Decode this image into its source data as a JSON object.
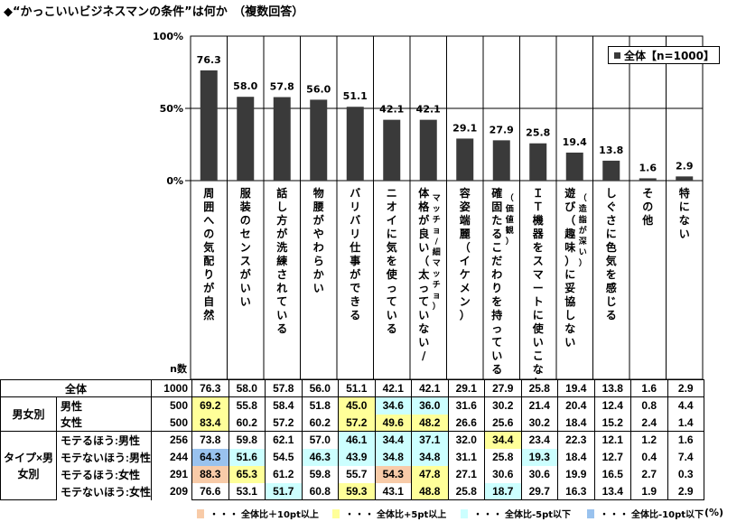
{
  "title": "◆“かっこいいビジネスマンの条件”は何か　（複数回答）",
  "legend": "全体【n=1000】",
  "unit": "(%)",
  "colors": {
    "bar": "#3a3a3a",
    "plus10": "#f8cba8",
    "plus5": "#ffff99",
    "minus5": "#ccffff",
    "minus10": "#99c2ee"
  },
  "chart_data": {
    "type": "bar",
    "title": "“かっこいいビジネスマンの条件”は何か　（複数回答）",
    "ylim": [
      0,
      100
    ],
    "yticks": [
      "0%",
      "50%",
      "100%"
    ],
    "legend": "全体【n=1000】",
    "legend_position": "top-right",
    "categories": [
      {
        "main": "周囲への気配りが自然",
        "sub": ""
      },
      {
        "main": "服装のセンスがいい",
        "sub": ""
      },
      {
        "main": "話し方が洗練されている",
        "sub": ""
      },
      {
        "main": "物腰がやわらかい",
        "sub": ""
      },
      {
        "main": "バリバリ仕事ができる",
        "sub": ""
      },
      {
        "main": "ニオイに気を使っている",
        "sub": ""
      },
      {
        "main": "体格が良い（太っていない/",
        "sub": "マッチョ/細マッチョ）"
      },
      {
        "main": "容姿端麗（イケメン）",
        "sub": ""
      },
      {
        "main": "確固たるこだわりを持っている",
        "sub": "（価値観）"
      },
      {
        "main": "ＩＴ機器をスマートに使いこなしている",
        "sub": ""
      },
      {
        "main": "遊び（趣味）に妥協しない",
        "sub": "（造詣が深い）"
      },
      {
        "main": "しぐさに色気を感じる",
        "sub": ""
      },
      {
        "main": "その他",
        "sub": ""
      },
      {
        "main": "特にない",
        "sub": ""
      }
    ],
    "values": [
      76.3,
      58.0,
      57.8,
      56.0,
      51.1,
      42.1,
      42.1,
      29.1,
      27.9,
      25.8,
      19.4,
      13.8,
      1.6,
      2.9
    ],
    "value_labels": [
      "76.3",
      "58.0",
      "57.8",
      "56.0",
      "51.1",
      "42.1",
      "42.1",
      "29.1",
      "27.9",
      "25.8",
      "19.4",
      "13.8",
      "1.6",
      "2.9"
    ],
    "n_header": "n数",
    "table": [
      {
        "group": "",
        "label": "全体",
        "n": "1000",
        "values": [
          "76.3",
          "58.0",
          "57.8",
          "56.0",
          "51.1",
          "42.1",
          "42.1",
          "29.1",
          "27.9",
          "25.8",
          "19.4",
          "13.8",
          "1.6",
          "2.9"
        ],
        "highlights": [
          "",
          "",
          "",
          "",
          "",
          "",
          "",
          "",
          "",
          "",
          "",
          "",
          "",
          ""
        ]
      },
      {
        "group": "男女別",
        "label": "男性",
        "n": "500",
        "values": [
          "69.2",
          "55.8",
          "58.4",
          "51.8",
          "45.0",
          "34.6",
          "36.0",
          "31.6",
          "30.2",
          "21.4",
          "20.4",
          "12.4",
          "0.8",
          "4.4"
        ],
        "highlights": [
          "plus5",
          "",
          "",
          "",
          "plus5",
          "minus5",
          "minus5",
          "",
          "",
          "",
          "",
          "",
          "",
          ""
        ]
      },
      {
        "group": "",
        "label": "女性",
        "n": "500",
        "values": [
          "83.4",
          "60.2",
          "57.2",
          "60.2",
          "57.2",
          "49.6",
          "48.2",
          "26.6",
          "25.6",
          "30.2",
          "18.4",
          "15.2",
          "2.4",
          "1.4"
        ],
        "highlights": [
          "plus5",
          "",
          "",
          "",
          "plus5",
          "plus5",
          "plus5",
          "",
          "",
          "",
          "",
          "",
          "",
          ""
        ]
      },
      {
        "group": "タイプ×男女別",
        "label": "モテるほう:男性",
        "n": "256",
        "values": [
          "73.8",
          "59.8",
          "62.1",
          "57.0",
          "46.1",
          "34.4",
          "37.1",
          "32.0",
          "34.4",
          "23.4",
          "22.3",
          "12.1",
          "1.2",
          "1.6"
        ],
        "highlights": [
          "",
          "",
          "",
          "",
          "minus5",
          "minus5",
          "minus5",
          "",
          "plus5",
          "",
          "",
          "",
          "",
          ""
        ]
      },
      {
        "group": "",
        "label": "モテないほう:男性",
        "n": "244",
        "values": [
          "64.3",
          "51.6",
          "54.5",
          "46.3",
          "43.9",
          "34.8",
          "34.8",
          "31.1",
          "25.8",
          "19.3",
          "18.4",
          "12.7",
          "0.4",
          "7.4"
        ],
        "highlights": [
          "minus10",
          "minus5",
          "",
          "minus5",
          "minus5",
          "minus5",
          "minus5",
          "",
          "",
          "minus5",
          "",
          "",
          "",
          ""
        ]
      },
      {
        "group": "",
        "label": "モテるほう:女性",
        "n": "291",
        "values": [
          "88.3",
          "65.3",
          "61.2",
          "59.8",
          "55.7",
          "54.3",
          "47.8",
          "27.1",
          "30.6",
          "30.6",
          "19.9",
          "16.5",
          "2.7",
          "0.3"
        ],
        "highlights": [
          "plus10",
          "plus5",
          "",
          "",
          "",
          "plus10",
          "plus5",
          "",
          "",
          "",
          "",
          "",
          "",
          ""
        ]
      },
      {
        "group": "",
        "label": "モテないほう:女性",
        "n": "209",
        "values": [
          "76.6",
          "53.1",
          "51.7",
          "60.8",
          "59.3",
          "43.1",
          "48.8",
          "25.8",
          "18.7",
          "29.7",
          "16.3",
          "13.4",
          "1.9",
          "2.9"
        ],
        "highlights": [
          "",
          "",
          "minus5",
          "",
          "plus5",
          "",
          "plus5",
          "",
          "minus5",
          "",
          "",
          "",
          "",
          ""
        ]
      }
    ],
    "key": [
      {
        "color": "plus10",
        "label": "全体比＋10pt以上"
      },
      {
        "color": "plus5",
        "label": "全体比+5pt以上"
      },
      {
        "color": "minus5",
        "label": "全体比-5pt以下"
      },
      {
        "color": "minus10",
        "label": "全体比-10pt以下"
      }
    ]
  }
}
